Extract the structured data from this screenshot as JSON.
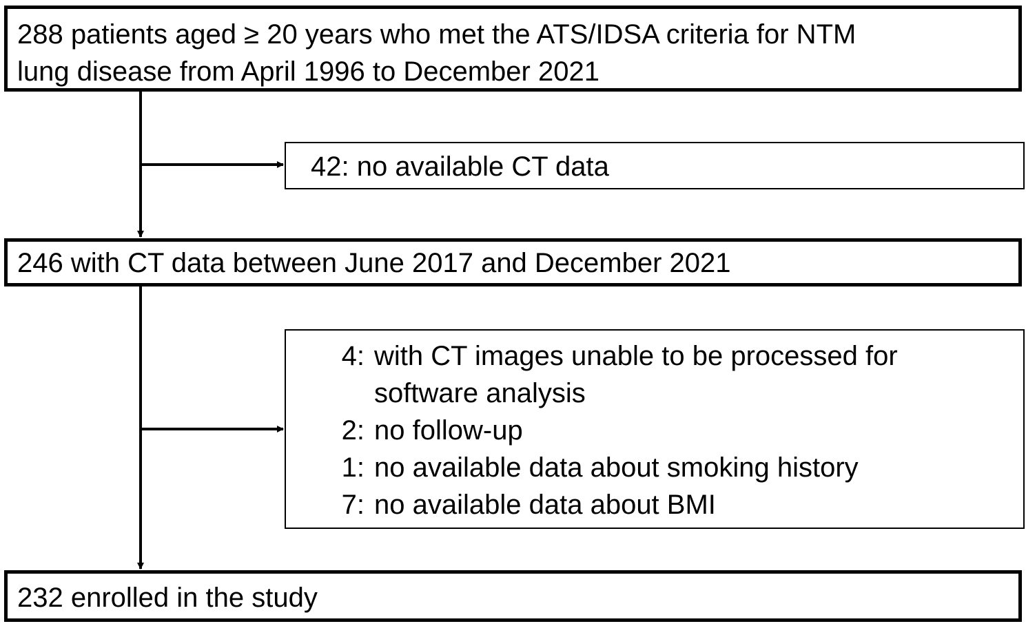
{
  "boxes": {
    "initial": {
      "line1": "288 patients aged ≥ 20 years who met the ATS/IDSA criteria for NTM",
      "line2": "lung disease from April 1996 to December 2021"
    },
    "with_ct": "246 with CT data between June 2017 and December 2021",
    "enrolled": "232 enrolled in the study"
  },
  "exclusions": {
    "first": {
      "count": "42:",
      "reason": "no available CT data"
    },
    "second": {
      "items": [
        {
          "count": "4:",
          "reason": "with CT images unable to be processed for",
          "continuation": "software analysis"
        },
        {
          "count": "2:",
          "reason": "no follow-up"
        },
        {
          "count": "1:",
          "reason": "no available data about smoking history"
        },
        {
          "count": "7:",
          "reason": "no available data about BMI"
        }
      ]
    }
  },
  "colors": {
    "line": "#000000",
    "background": "#ffffff"
  }
}
